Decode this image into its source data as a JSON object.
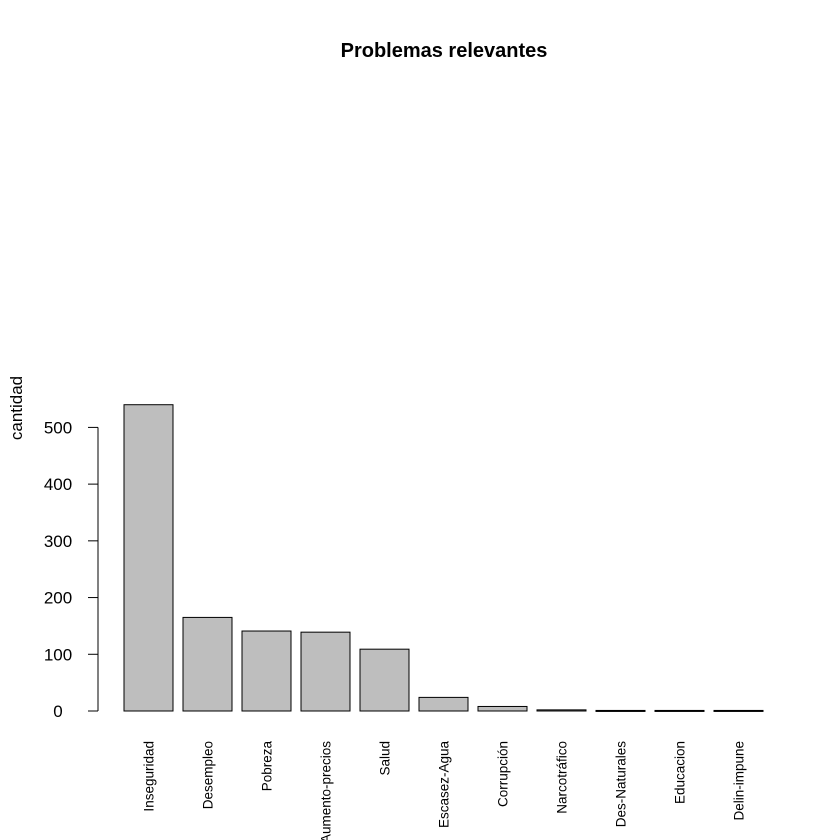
{
  "chart_data": {
    "type": "bar",
    "title": "Problemas relevantes",
    "xlabel": "",
    "ylabel": "cantidad",
    "categories": [
      "Inseguridad",
      "Desempleo",
      "Pobreza",
      "Aumento-precios",
      "Salud",
      "Escasez-Agua",
      "Corrupción",
      "Narcotráfico",
      "Des-Naturales",
      "Educacion",
      "Delin-impune"
    ],
    "values": [
      540,
      165,
      141,
      139,
      109,
      24,
      8,
      2,
      1,
      1,
      1
    ],
    "yticks": [
      0,
      100,
      200,
      300,
      400,
      500
    ],
    "ylim": [
      0,
      560
    ],
    "bar_color": "#bebebe",
    "grid": false,
    "legend": "none"
  }
}
